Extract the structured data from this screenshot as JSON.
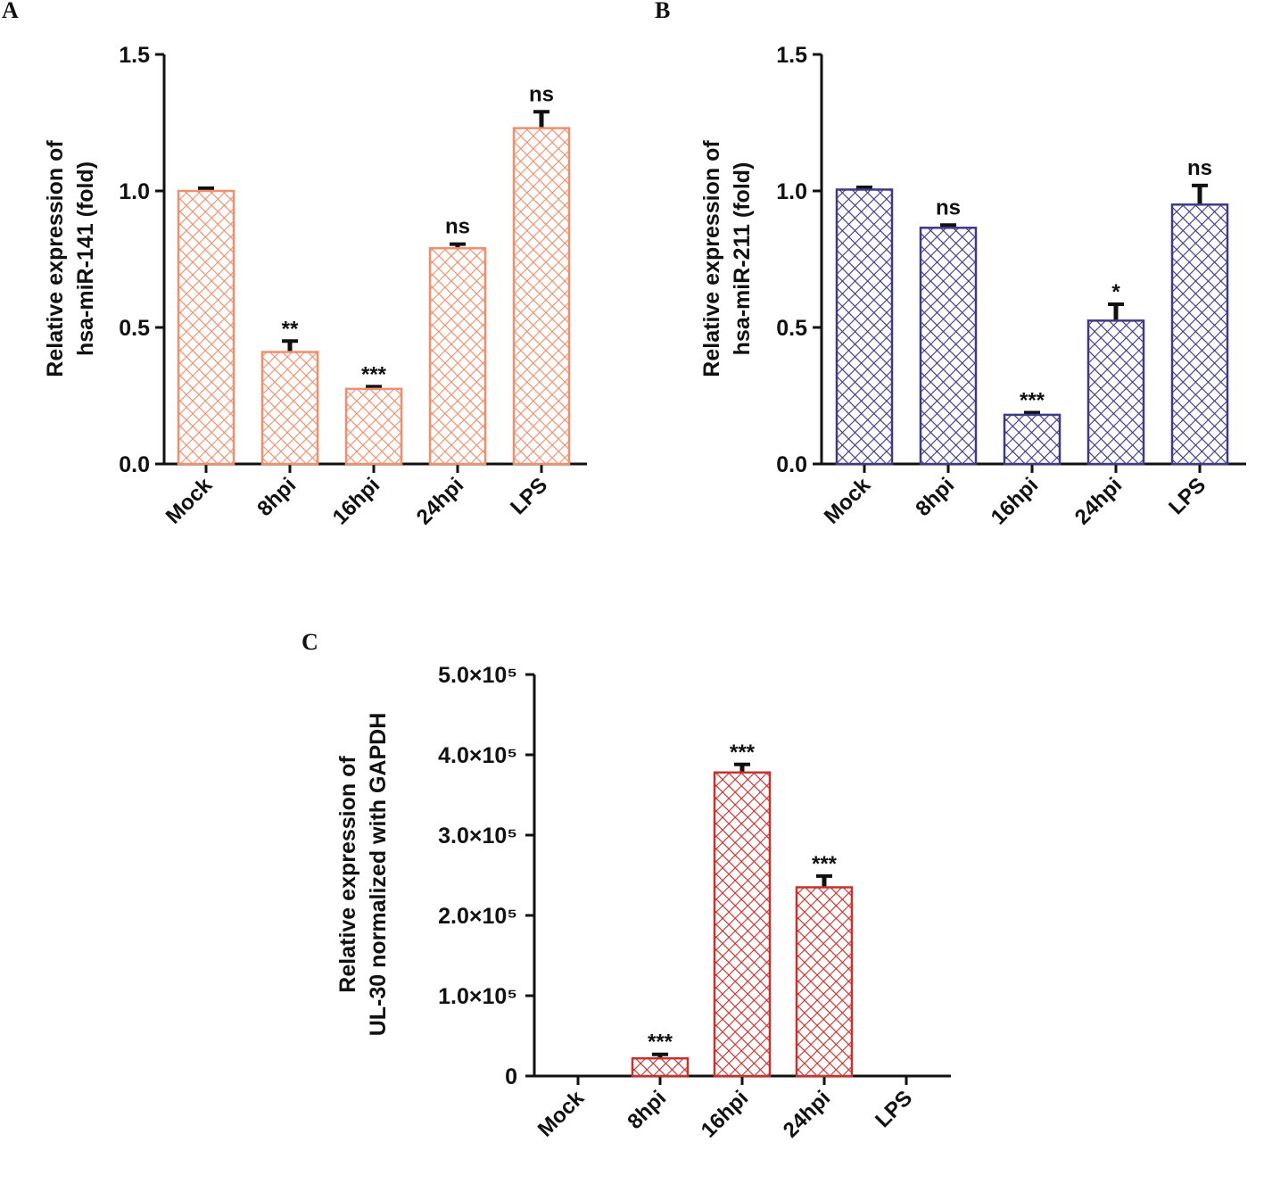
{
  "colors": {
    "panel_a": "#ef8f6e",
    "panel_b": "#3f3a86",
    "panel_c": "#c8312e",
    "axis": "#111111",
    "error_bar": "#111111"
  },
  "chart_data": [
    {
      "panel_label": "A",
      "type": "bar",
      "categories": [
        "Mock",
        "8hpi",
        "16hpi",
        "24hpi",
        "LPS"
      ],
      "values": [
        1.0,
        0.41,
        0.275,
        0.79,
        1.23
      ],
      "errors": [
        0.01,
        0.04,
        0.008,
        0.015,
        0.06
      ],
      "significance": [
        "",
        "**",
        "***",
        "ns",
        "ns"
      ],
      "ylabel": [
        "Relative expression of",
        "hsa-miR-141 (fold)"
      ],
      "xlabel": "",
      "ylim": [
        0,
        1.5
      ],
      "yticks": [
        0.0,
        0.5,
        1.0,
        1.5
      ],
      "ytick_labels": [
        "0.0",
        "0.5",
        "1.0",
        "1.5"
      ],
      "color_key": "panel_a"
    },
    {
      "panel_label": "B",
      "type": "bar",
      "categories": [
        "Mock",
        "8hpi",
        "16hpi",
        "24hpi",
        "LPS"
      ],
      "values": [
        1.005,
        0.865,
        0.18,
        0.525,
        0.95
      ],
      "errors": [
        0.008,
        0.01,
        0.008,
        0.06,
        0.07
      ],
      "significance": [
        "",
        "ns",
        "***",
        "*",
        "ns"
      ],
      "ylabel": [
        "Relative expression of",
        "hsa-miR-211 (fold)"
      ],
      "xlabel": "",
      "ylim": [
        0,
        1.5
      ],
      "yticks": [
        0.0,
        0.5,
        1.0,
        1.5
      ],
      "ytick_labels": [
        "0.0",
        "0.5",
        "1.0",
        "1.5"
      ],
      "color_key": "panel_b"
    },
    {
      "panel_label": "C",
      "type": "bar",
      "categories": [
        "Mock",
        "8hpi",
        "16hpi",
        "24hpi",
        "LPS"
      ],
      "values": [
        0,
        22000,
        378000,
        235000,
        0
      ],
      "errors": [
        0,
        5000,
        10000,
        14000,
        0
      ],
      "significance": [
        "",
        "***",
        "***",
        "***",
        ""
      ],
      "ylabel": [
        "Relative expression of",
        "UL-30 normalized with GAPDH"
      ],
      "xlabel": "",
      "ylim": [
        0,
        500000
      ],
      "yticks": [
        0,
        100000,
        200000,
        300000,
        400000,
        500000
      ],
      "ytick_labels": [
        "0",
        "1.0×10⁵",
        "2.0×10⁵",
        "3.0×10⁵",
        "4.0×10⁵",
        "5.0×10⁵"
      ],
      "color_key": "panel_c"
    }
  ]
}
